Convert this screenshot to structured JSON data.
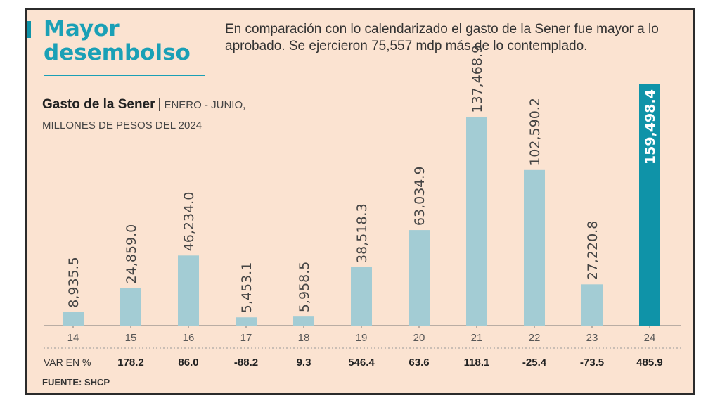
{
  "header": {
    "title_line1": "Mayor",
    "title_line2": "desembolso",
    "subtitle": "En comparación con lo calendarizado el gasto de la Sener fue mayor a lo aprobado. Se ejercieron 75,557 mdp más de lo contemplado."
  },
  "chart_data": {
    "type": "bar",
    "title": "Gasto de la Sener",
    "subtitle_line1": "ENERO - JUNIO,",
    "subtitle_line2": "MILLONES DE PESOS DEL 2024",
    "categories": [
      "14",
      "15",
      "16",
      "17",
      "18",
      "19",
      "20",
      "21",
      "22",
      "23",
      "24"
    ],
    "values": [
      8935.5,
      24859.0,
      46234.0,
      5453.1,
      5958.5,
      38518.3,
      63034.9,
      137468.9,
      102590.2,
      27220.8,
      159498.4
    ],
    "value_labels": [
      "8,935.5",
      "24,859.0",
      "46,234.0",
      "5,453.1",
      "5,958.5",
      "38,518.3",
      "63,034.9",
      "137,468.9",
      "102,590.2",
      "27,220.8",
      "159,498.4"
    ],
    "highlight_index": 10,
    "bar_color": "#a3ccd4",
    "highlight_color": "#0f93a8",
    "ylim": [
      0,
      160000
    ],
    "variation_label": "VAR EN %",
    "variation": [
      "178.2",
      "86.0",
      "-88.2",
      "9.3",
      "546.4",
      "63.6",
      "118.1",
      "-25.4",
      "-73.5",
      "485.9"
    ],
    "source": "FUENTE: SHCP"
  }
}
